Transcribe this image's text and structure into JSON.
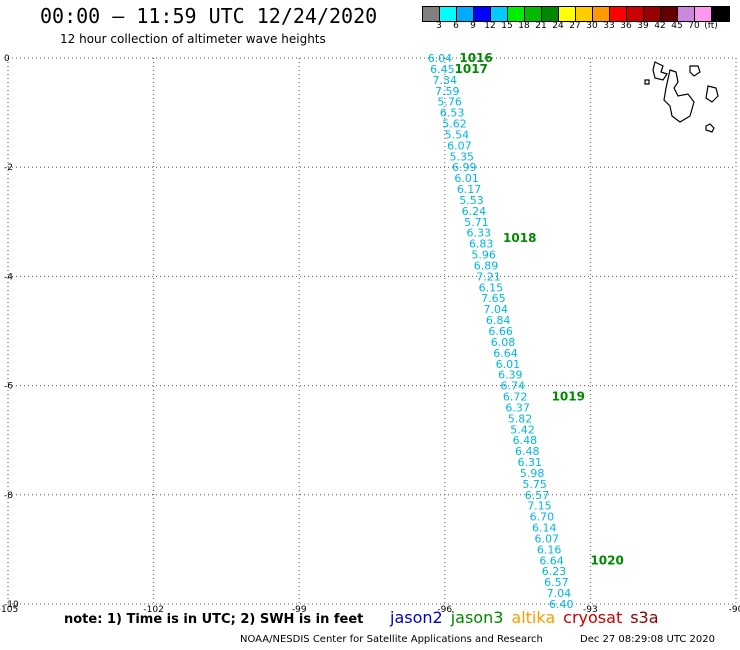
{
  "header": {
    "title": "00:00 – 11:59 UTC 12/24/2020",
    "subtitle": "12 hour collection of altimeter wave heights"
  },
  "colorbar": {
    "colors": [
      "#808080",
      "#00ffff",
      "#00aaff",
      "#0000ff",
      "#00ccff",
      "#00ee00",
      "#00bb00",
      "#008800",
      "#ffff00",
      "#ffcc00",
      "#ff9900",
      "#ff0000",
      "#cc0000",
      "#990000",
      "#660000",
      "#cc88dd",
      "#ff99ee",
      "#000000"
    ],
    "labels": [
      "3",
      "6",
      "9",
      "12",
      "15",
      "18",
      "21",
      "24",
      "27",
      "30",
      "33",
      "36",
      "39",
      "42",
      "45",
      "70",
      "(ft)"
    ]
  },
  "map": {
    "lon_ticks": [
      "-105",
      "-102",
      "-99",
      "-96",
      "-93",
      "-90"
    ],
    "lat_ticks": [
      "0",
      "-2",
      "-4",
      "-6",
      "-8",
      "-10"
    ],
    "lon_range": [
      -105,
      -90
    ],
    "lat_range": [
      -10,
      0
    ],
    "track_color": "#00b8e0",
    "time_color": "#008800",
    "track": [
      {
        "lon": -96.1,
        "lat": 0.0,
        "v": "6.04"
      },
      {
        "lon": -96.05,
        "lat": -0.2,
        "v": "6.45"
      },
      {
        "lon": -96.0,
        "lat": -0.4,
        "v": "7.34"
      },
      {
        "lon": -95.95,
        "lat": -0.6,
        "v": "7.59"
      },
      {
        "lon": -95.9,
        "lat": -0.8,
        "v": "5.76"
      },
      {
        "lon": -95.85,
        "lat": -1.0,
        "v": "6.53"
      },
      {
        "lon": -95.8,
        "lat": -1.2,
        "v": "5.62"
      },
      {
        "lon": -95.75,
        "lat": -1.4,
        "v": "5.54"
      },
      {
        "lon": -95.7,
        "lat": -1.6,
        "v": "6.07"
      },
      {
        "lon": -95.65,
        "lat": -1.8,
        "v": "5.35"
      },
      {
        "lon": -95.6,
        "lat": -2.0,
        "v": "6.99"
      },
      {
        "lon": -95.55,
        "lat": -2.2,
        "v": "6.01"
      },
      {
        "lon": -95.5,
        "lat": -2.4,
        "v": "6.17"
      },
      {
        "lon": -95.45,
        "lat": -2.6,
        "v": "5.53"
      },
      {
        "lon": -95.4,
        "lat": -2.8,
        "v": "6.24"
      },
      {
        "lon": -95.35,
        "lat": -3.0,
        "v": "5.71"
      },
      {
        "lon": -95.3,
        "lat": -3.2,
        "v": "6.33"
      },
      {
        "lon": -95.25,
        "lat": -3.4,
        "v": "6.83"
      },
      {
        "lon": -95.2,
        "lat": -3.6,
        "v": "5.96"
      },
      {
        "lon": -95.15,
        "lat": -3.8,
        "v": "6.89"
      },
      {
        "lon": -95.1,
        "lat": -4.0,
        "v": "7.21"
      },
      {
        "lon": -95.05,
        "lat": -4.2,
        "v": "6.15"
      },
      {
        "lon": -95.0,
        "lat": -4.4,
        "v": "7.65"
      },
      {
        "lon": -94.95,
        "lat": -4.6,
        "v": "7.04"
      },
      {
        "lon": -94.9,
        "lat": -4.8,
        "v": "6.84"
      },
      {
        "lon": -94.85,
        "lat": -5.0,
        "v": "6.66"
      },
      {
        "lon": -94.8,
        "lat": -5.2,
        "v": "6.08"
      },
      {
        "lon": -94.75,
        "lat": -5.4,
        "v": "6.64"
      },
      {
        "lon": -94.7,
        "lat": -5.6,
        "v": "6.01"
      },
      {
        "lon": -94.65,
        "lat": -5.8,
        "v": "6.39"
      },
      {
        "lon": -94.6,
        "lat": -6.0,
        "v": "6.74"
      },
      {
        "lon": -94.55,
        "lat": -6.2,
        "v": "6.72"
      },
      {
        "lon": -94.5,
        "lat": -6.4,
        "v": "6.37"
      },
      {
        "lon": -94.45,
        "lat": -6.6,
        "v": "5.82"
      },
      {
        "lon": -94.4,
        "lat": -6.8,
        "v": "5.42"
      },
      {
        "lon": -94.35,
        "lat": -7.0,
        "v": "6.48"
      },
      {
        "lon": -94.3,
        "lat": -7.2,
        "v": "6.48"
      },
      {
        "lon": -94.25,
        "lat": -7.4,
        "v": "6.31"
      },
      {
        "lon": -94.2,
        "lat": -7.6,
        "v": "5.98"
      },
      {
        "lon": -94.15,
        "lat": -7.8,
        "v": "5.75"
      },
      {
        "lon": -94.1,
        "lat": -8.0,
        "v": "6.57"
      },
      {
        "lon": -94.05,
        "lat": -8.2,
        "v": "7.15"
      },
      {
        "lon": -94.0,
        "lat": -8.4,
        "v": "6.70"
      },
      {
        "lon": -93.95,
        "lat": -8.6,
        "v": "6.14"
      },
      {
        "lon": -93.9,
        "lat": -8.8,
        "v": "6.07"
      },
      {
        "lon": -93.85,
        "lat": -9.0,
        "v": "6.16"
      },
      {
        "lon": -93.8,
        "lat": -9.2,
        "v": "6.64"
      },
      {
        "lon": -93.75,
        "lat": -9.4,
        "v": "6.23"
      },
      {
        "lon": -93.7,
        "lat": -9.6,
        "v": "6.57"
      },
      {
        "lon": -93.65,
        "lat": -9.8,
        "v": "7.04"
      },
      {
        "lon": -93.6,
        "lat": -10.0,
        "v": "6.40"
      }
    ],
    "time_labels": [
      {
        "lon": -95.7,
        "lat": 0.0,
        "t": "1016"
      },
      {
        "lon": -95.8,
        "lat": -0.2,
        "t": "1017"
      },
      {
        "lon": -94.8,
        "lat": -3.3,
        "t": "1018"
      },
      {
        "lon": -93.8,
        "lat": -6.2,
        "t": "1019"
      },
      {
        "lon": -93.0,
        "lat": -9.2,
        "t": "1020"
      }
    ]
  },
  "footer": {
    "note": "note: 1) Time is in UTC; 2) SWH is in feet",
    "satellites": [
      {
        "name": "jason2",
        "color": "#0000cc"
      },
      {
        "name": "jason3",
        "color": "#008800"
      },
      {
        "name": "altika",
        "color": "#ff9900"
      },
      {
        "name": "cryosat",
        "color": "#cc0000"
      },
      {
        "name": "s3a",
        "color": "#880000"
      }
    ],
    "credit": "NOAA/NESDIS Center for Satellite Applications and Research",
    "timestamp": "Dec 27 08:29:08 UTC 2020"
  }
}
